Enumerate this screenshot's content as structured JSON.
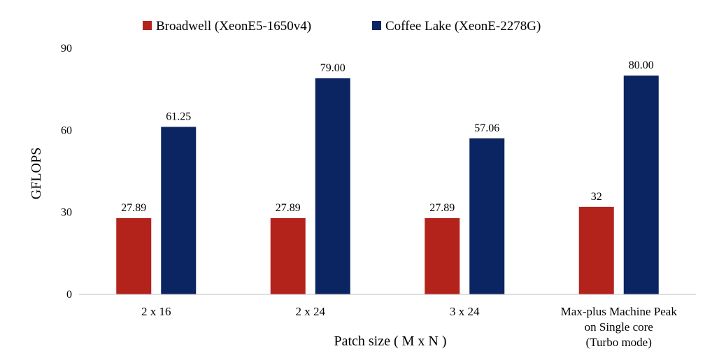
{
  "chart_data": {
    "type": "bar",
    "title": "",
    "xlabel": "Patch size ( M x N )",
    "ylabel": "GFLOPS",
    "ylim": [
      0,
      90
    ],
    "yticks": [
      0,
      30,
      60,
      90
    ],
    "grid": false,
    "legend_position": "top",
    "categories": [
      [
        "2 x 16"
      ],
      [
        "2 x 24"
      ],
      [
        "3 x 24"
      ],
      [
        "Max-plus  Machine Peak",
        "on Single core",
        "(Turbo mode)"
      ]
    ],
    "series": [
      {
        "name": "Broadwell (XeonE5-1650v4)",
        "color": "#B3231B",
        "values": [
          27.89,
          27.89,
          27.89,
          32
        ],
        "labels": [
          "27.89",
          "27.89",
          "27.89",
          "32"
        ]
      },
      {
        "name": "Coffee Lake  (XeonE-2278G)",
        "color": "#0B2462",
        "values": [
          61.25,
          79.0,
          57.06,
          80.0
        ],
        "labels": [
          "61.25",
          "79.00",
          "57.06",
          "80.00"
        ]
      }
    ]
  }
}
